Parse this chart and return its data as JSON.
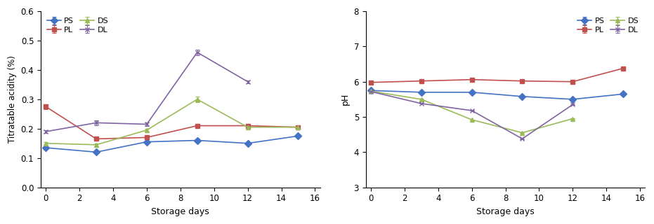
{
  "days": [
    0,
    3,
    6,
    9,
    12,
    15
  ],
  "acidity": {
    "PS": [
      0.135,
      0.12,
      0.155,
      0.16,
      0.15,
      0.175
    ],
    "PL": [
      0.275,
      0.165,
      0.17,
      0.21,
      0.21,
      0.205
    ],
    "DS": [
      0.15,
      0.145,
      0.195,
      0.3,
      0.205,
      0.205
    ],
    "DL": [
      0.19,
      0.22,
      0.215,
      0.46,
      0.36,
      null
    ]
  },
  "ph": {
    "PS": [
      5.75,
      5.7,
      5.7,
      5.58,
      5.5,
      5.65
    ],
    "PL": [
      5.98,
      6.02,
      6.06,
      6.02,
      6.0,
      6.38
    ],
    "DS": [
      5.73,
      5.5,
      4.92,
      4.55,
      4.95,
      null
    ],
    "DL": [
      5.72,
      5.38,
      5.18,
      4.38,
      5.35,
      null
    ]
  },
  "colors": {
    "PS": "#4472C4",
    "PL": "#C0504D",
    "DS": "#9BBB59",
    "DL": "#8064A2"
  },
  "markers": {
    "PS": "D",
    "PL": "s",
    "DS": "^",
    "DL": "x"
  },
  "acidity_ylim": [
    0,
    0.6
  ],
  "acidity_yticks": [
    0,
    0.1,
    0.2,
    0.3,
    0.4,
    0.5,
    0.6
  ],
  "ph_ylim": [
    3,
    8
  ],
  "ph_yticks": [
    3,
    4,
    5,
    6,
    7,
    8
  ],
  "xlim": [
    -0.3,
    16.3
  ],
  "xticks": [
    0,
    2,
    4,
    6,
    8,
    10,
    12,
    14,
    16
  ],
  "xlabel": "Storage days",
  "acidity_ylabel": "Titratable acidity (%)",
  "ph_ylabel": "pH",
  "acidity_errors": {
    "PS": [
      0.005,
      0.005,
      0.005,
      0.005,
      0.005,
      0.005
    ],
    "PL": [
      0.008,
      0.005,
      0.005,
      0.005,
      0.007,
      0.005
    ],
    "DS": [
      0.005,
      0.005,
      0.005,
      0.01,
      0.005,
      0.005
    ],
    "DL": [
      0.005,
      0.008,
      0.005,
      0.01,
      0.005,
      null
    ]
  },
  "ph_errors": {
    "PS": [
      0.01,
      0.01,
      0.01,
      0.01,
      0.01,
      0.01
    ],
    "PL": [
      0.01,
      0.01,
      0.01,
      0.01,
      0.01,
      0.01
    ],
    "DS": [
      0.01,
      0.01,
      0.01,
      0.01,
      0.01,
      null
    ],
    "DL": [
      0.01,
      0.01,
      0.01,
      0.01,
      0.01,
      null
    ]
  }
}
